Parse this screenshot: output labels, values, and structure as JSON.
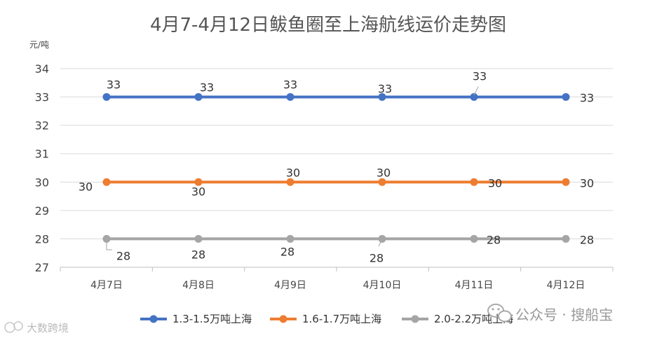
{
  "chart_data": {
    "type": "line",
    "title": "4月7-4月12日鲅鱼圈至上海航线运价走势图",
    "ylabel": "元/吨",
    "xlabel": "",
    "categories": [
      "4月7日",
      "4月8日",
      "4月9日",
      "4月10日",
      "4月11日",
      "4月12日"
    ],
    "yticks": [
      "27",
      "28",
      "29",
      "30",
      "31",
      "32",
      "33",
      "34"
    ],
    "ylim": [
      27,
      34
    ],
    "grid": true,
    "legend_position": "bottom",
    "series": [
      {
        "name": "1.3-1.5万吨上海",
        "color": "#4472C4",
        "values": [
          33,
          33,
          33,
          33,
          33,
          33
        ]
      },
      {
        "name": "1.6-1.7万吨上海",
        "color": "#ED7D31",
        "values": [
          30,
          30,
          30,
          30,
          30,
          30
        ]
      },
      {
        "name": "2.0-2.2万吨上海",
        "color": "#A5A5A5",
        "values": [
          28,
          28,
          28,
          28,
          28,
          28
        ]
      }
    ]
  },
  "watermark": {
    "right_text": "公众号 · 搜船宝",
    "left_text": "大数跨境",
    "icon": "wechat-icon"
  }
}
